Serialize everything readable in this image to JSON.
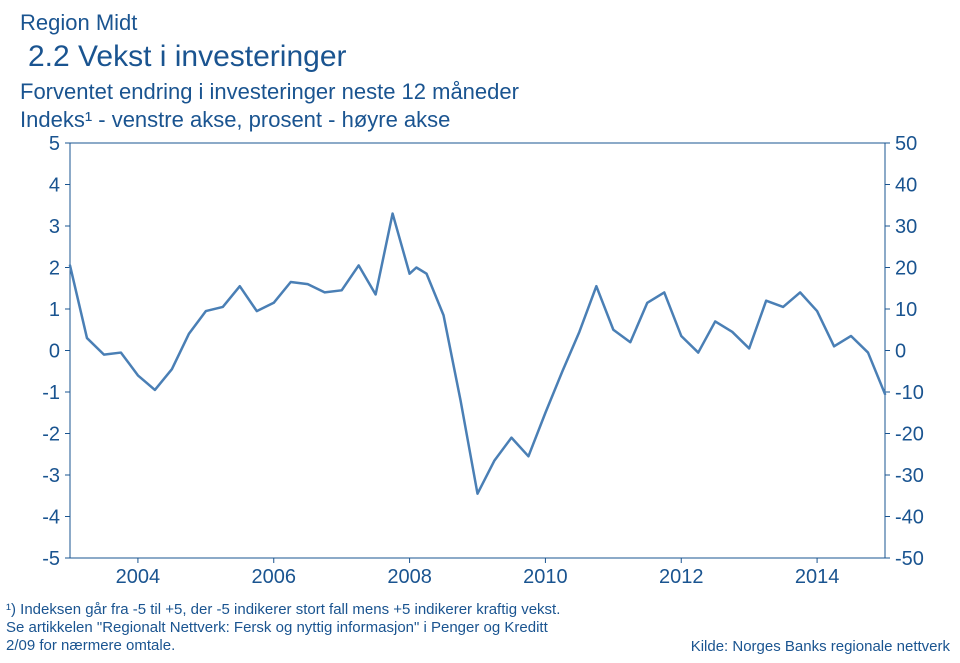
{
  "header": {
    "region": "Region Midt",
    "title": "2.2 Vekst i investeringer",
    "subtitle_line1": "Forventet endring i investeringer neste 12 måneder",
    "subtitle_line2": "Indeks¹ - venstre akse, prosent - høyre akse"
  },
  "footnote": "¹) Indeksen går fra -5 til +5, der -5 indikerer stort fall mens +5 indikerer kraftig vekst. Se artikkelen \"Regionalt Nettverk: Fersk og nyttig informasjon\" i Penger og Kreditt 2/09 for nærmere omtale.",
  "source": "Kilde: Norges Banks regionale nettverk",
  "chart": {
    "type": "line",
    "title_fontsize": 30,
    "label_fontsize": 22,
    "tick_fontsize": 20,
    "background_color": "#ffffff",
    "text_color": "#1a5490",
    "line_color": "#4a7fb5",
    "line_width": 2.5,
    "axis_color": "#1a5490",
    "axis_width": 1,
    "border_color": "#1a5490",
    "left_axis": {
      "ylim": [
        -5,
        5
      ],
      "ticks": [
        -5,
        -4,
        -3,
        -2,
        -1,
        0,
        1,
        2,
        3,
        4,
        5
      ]
    },
    "right_axis": {
      "ylim": [
        -50,
        50
      ],
      "ticks": [
        -50,
        -40,
        -30,
        -20,
        -10,
        0,
        10,
        20,
        30,
        40,
        50
      ]
    },
    "x_axis": {
      "min": 2003,
      "max": 2015,
      "ticks": [
        2004,
        2006,
        2008,
        2010,
        2012,
        2014
      ]
    },
    "series": [
      {
        "name": "indeks",
        "color": "#4a7fb5",
        "width": 2.5,
        "data": [
          [
            2003.0,
            2.05
          ],
          [
            2003.25,
            0.3
          ],
          [
            2003.5,
            -0.1
          ],
          [
            2003.75,
            -0.05
          ],
          [
            2004.0,
            -0.6
          ],
          [
            2004.25,
            -0.95
          ],
          [
            2004.5,
            -0.45
          ],
          [
            2004.75,
            0.4
          ],
          [
            2005.0,
            0.95
          ],
          [
            2005.25,
            1.05
          ],
          [
            2005.5,
            1.55
          ],
          [
            2005.75,
            0.95
          ],
          [
            2006.0,
            1.15
          ],
          [
            2006.25,
            1.65
          ],
          [
            2006.5,
            1.6
          ],
          [
            2006.75,
            1.4
          ],
          [
            2007.0,
            1.45
          ],
          [
            2007.25,
            2.05
          ],
          [
            2007.5,
            1.35
          ],
          [
            2007.75,
            3.3
          ],
          [
            2008.0,
            1.85
          ],
          [
            2008.1,
            2.0
          ],
          [
            2008.25,
            1.85
          ],
          [
            2008.5,
            0.85
          ],
          [
            2008.75,
            -1.2
          ],
          [
            2009.0,
            -3.45
          ],
          [
            2009.25,
            -2.65
          ],
          [
            2009.5,
            -2.1
          ],
          [
            2009.75,
            -2.55
          ],
          [
            2010.0,
            -1.5
          ],
          [
            2010.25,
            -0.5
          ],
          [
            2010.5,
            0.45
          ],
          [
            2010.75,
            1.55
          ],
          [
            2011.0,
            0.5
          ],
          [
            2011.25,
            0.2
          ],
          [
            2011.5,
            1.15
          ],
          [
            2011.75,
            1.4
          ],
          [
            2012.0,
            0.35
          ],
          [
            2012.25,
            -0.05
          ],
          [
            2012.5,
            0.7
          ],
          [
            2012.75,
            0.45
          ],
          [
            2013.0,
            0.05
          ],
          [
            2013.25,
            1.2
          ],
          [
            2013.5,
            1.05
          ],
          [
            2013.75,
            1.4
          ],
          [
            2014.0,
            0.95
          ],
          [
            2014.25,
            0.1
          ],
          [
            2014.5,
            0.35
          ],
          [
            2014.75,
            -0.05
          ],
          [
            2015.0,
            -1.05
          ]
        ]
      }
    ]
  }
}
